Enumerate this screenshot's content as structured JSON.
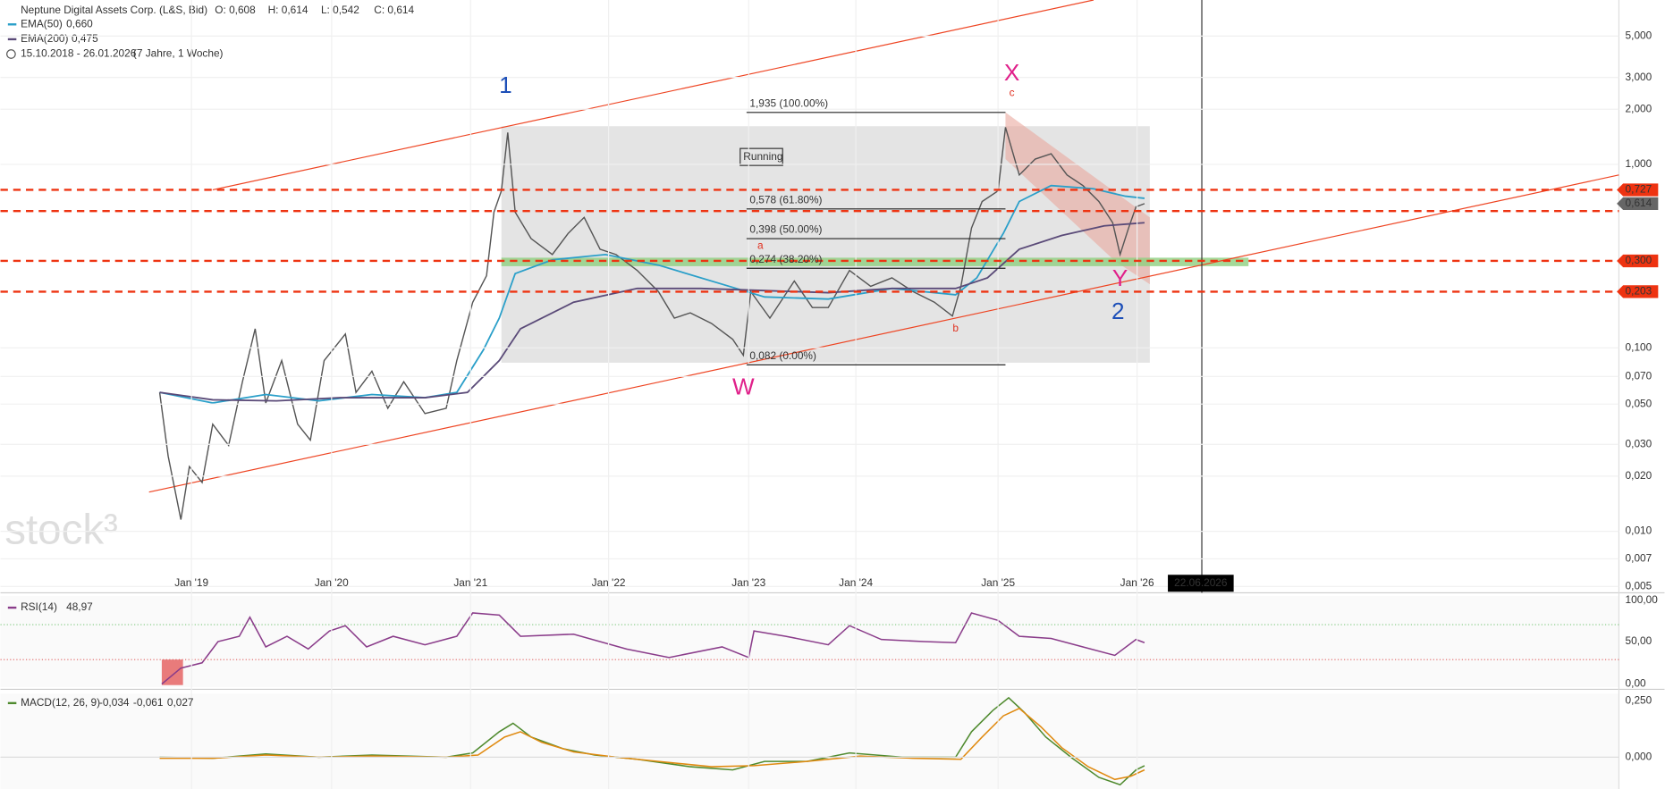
{
  "header": {
    "title": "Neptune Digital Assets Corp. (L&S, Bid)",
    "ohlc": [
      "O: 0,608",
      "H: 0,614",
      "L: 0,542",
      "C: 0,614"
    ],
    "ema50": {
      "label": "EMA(50)",
      "value": "0,660"
    },
    "ema200": {
      "label": "EMA(200)",
      "value": "0,475"
    },
    "range": "15.10.2018 - 26.01.2026",
    "period": "(7 Jahre, 1 Woche)"
  },
  "y_axis": [
    "5,000",
    "3,000",
    "2,000",
    "1,000",
    "0,100",
    "0,070",
    "0,050",
    "0,030",
    "0,020",
    "0,010",
    "0,007",
    "0,005"
  ],
  "price_tags": [
    "0,727",
    "0,614",
    "0,300",
    "0,203"
  ],
  "x_axis": [
    "Jan '19",
    "Jan '20",
    "Jan '21",
    "Jan '22",
    "Jan '23",
    "Jan '24",
    "Jan '25",
    "Jan '26"
  ],
  "date_marker": "22.06.2026",
  "fib_levels": [
    "1,935 (100.00%)",
    "0,578 (61.80%)",
    "0,398 (50.00%)",
    "0,274 (38.20%)",
    "0,082 (0.00%)"
  ],
  "wave_labels": [
    "1",
    "X",
    "c",
    "W",
    "a",
    "b",
    "Y",
    "2"
  ],
  "annotation": "Running",
  "watermark": "stock³",
  "rsi": {
    "label": "RSI(14)",
    "value": "48,97",
    "axis": [
      "100,00",
      "50,00",
      "0,00"
    ]
  },
  "macd": {
    "label": "MACD(12, 26, 9)",
    "values": [
      "-0,034",
      "-0,061",
      "0,027"
    ],
    "axis": [
      "0,250",
      "0,000"
    ]
  }
}
